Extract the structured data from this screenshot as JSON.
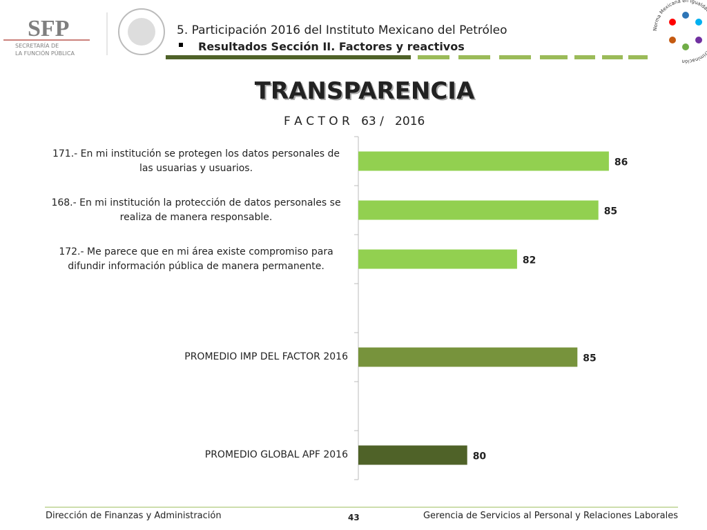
{
  "header": {
    "logo_left": [
      "SFP",
      "SECRETARÍA DE",
      "LA FUNCIÓN PÚBLICA"
    ],
    "line1": "5. Participación 2016 del Instituto Mexicano del Petróleo",
    "line2": "Resultados Sección II. Factores y reactivos",
    "logo_right": "Norma Mexicana en Igualdad Laboral y No Discriminación"
  },
  "chart_data": {
    "type": "bar",
    "orientation": "horizontal",
    "title": "TRANSPARENCIA",
    "subtitle": "F A C T O R   63 /   2016",
    "categories": [
      "171.- En mi institución se protegen los datos personales de las usuarias y usuarios.",
      "168.- En mi institución la protección de datos personales se realiza de manera responsable.",
      "172.- Me parece que en mi área existe compromiso para difundir información pública de manera permanente.",
      null,
      "PROMEDIO IMP DEL FACTOR   2016",
      null,
      "PROMEDIO GLOBAL APF   2016"
    ],
    "values": [
      85.8,
      85.4,
      82.3,
      null,
      84.6,
      null,
      80.4
    ],
    "value_labels": [
      "86",
      "85",
      "82",
      null,
      "85",
      null,
      "80"
    ],
    "colors": [
      "#92d050",
      "#92d050",
      "#92d050",
      null,
      "#77933c",
      null,
      "#4f6228"
    ],
    "xlim": [
      76.25,
      88.25
    ]
  },
  "footer": {
    "left": "Dirección de Finanzas y Administración",
    "page": "43",
    "right": "Gerencia de Servicios al Personal y Relaciones Laborales"
  }
}
